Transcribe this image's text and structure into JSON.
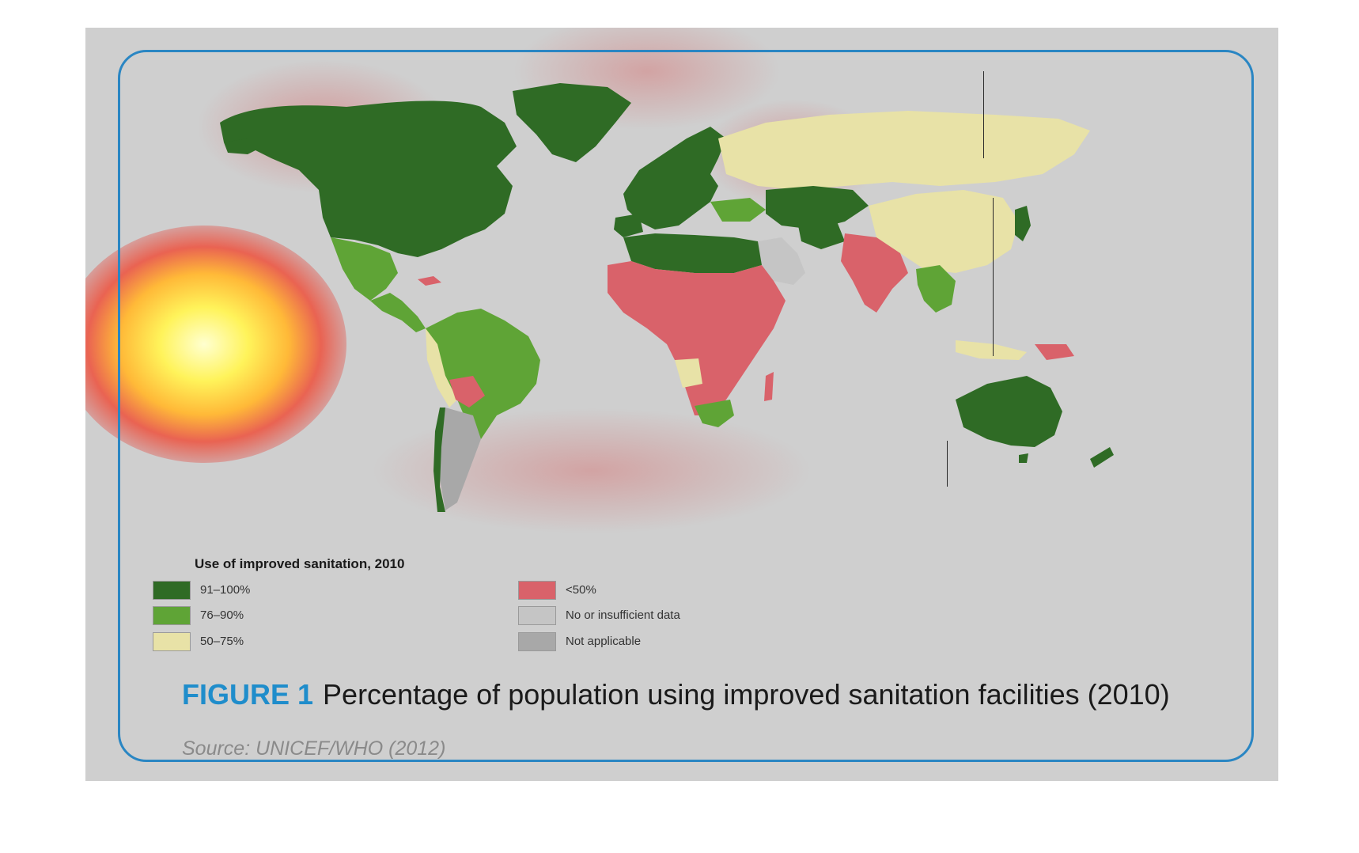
{
  "figure": {
    "label": "FIGURE 1",
    "title": "Percentage of population using improved sanitation facilities (2010)",
    "source": "Source: UNICEF/WHO (2012)"
  },
  "legend": {
    "title": "Use of improved sanitation, 2010",
    "items": [
      {
        "label": "91–100%",
        "color": "#2f6b25"
      },
      {
        "label": "76–90%",
        "color": "#5fa436"
      },
      {
        "label": "50–75%",
        "color": "#e8e2a7"
      },
      {
        "label": "<50%",
        "color": "#d9626a"
      },
      {
        "label": "No or insufficient data",
        "color": "#c5c5c5"
      },
      {
        "label": "Not applicable",
        "color": "#a8a8a8"
      }
    ]
  },
  "colors": {
    "frame": "#2a86c3",
    "figure_label": "#1f8dcb",
    "panel_background": "#cfcfcf",
    "heatmap_hot": "#fff35a"
  }
}
